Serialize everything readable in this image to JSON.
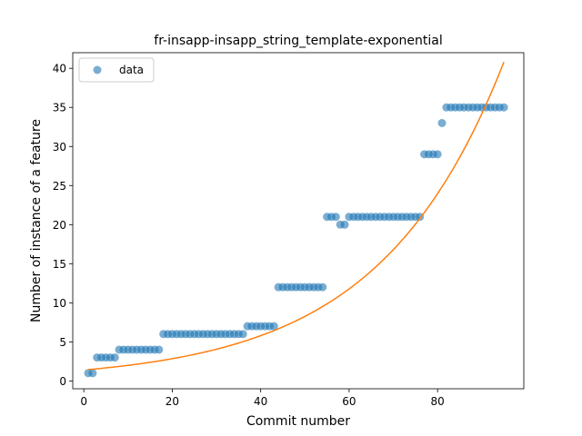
{
  "chart_data": {
    "type": "scatter",
    "title": "fr-insapp-insapp_string_template-exponential",
    "xlabel": "Commit number",
    "ylabel": "Number of instance of a feature",
    "xlim": [
      -2.5,
      99.5
    ],
    "ylim": [
      -1,
      42
    ],
    "x_ticks": [
      0,
      20,
      40,
      60,
      80
    ],
    "y_ticks": [
      0,
      5,
      10,
      15,
      20,
      25,
      30,
      35,
      40
    ],
    "grid": false,
    "legend_position": "upper-left",
    "colors": {
      "data": "#1f77b4",
      "fit": "#ff7f0e"
    },
    "series": [
      {
        "name": "data",
        "kind": "scatter",
        "x": [
          1,
          2,
          3,
          4,
          5,
          6,
          7,
          8,
          9,
          10,
          11,
          12,
          13,
          14,
          15,
          16,
          17,
          18,
          19,
          20,
          21,
          22,
          23,
          24,
          25,
          26,
          27,
          28,
          29,
          30,
          31,
          32,
          33,
          34,
          35,
          36,
          37,
          38,
          39,
          40,
          41,
          42,
          43,
          44,
          45,
          46,
          47,
          48,
          49,
          50,
          51,
          52,
          53,
          54,
          55,
          56,
          57,
          58,
          59,
          60,
          61,
          62,
          63,
          64,
          65,
          66,
          67,
          68,
          69,
          70,
          71,
          72,
          73,
          74,
          75,
          76,
          77,
          78,
          79,
          80,
          81,
          82,
          83,
          84,
          85,
          86,
          87,
          88,
          89,
          90,
          91,
          92,
          93,
          94,
          95
        ],
        "y": [
          1,
          1,
          3,
          3,
          3,
          3,
          3,
          4,
          4,
          4,
          4,
          4,
          4,
          4,
          4,
          4,
          4,
          6,
          6,
          6,
          6,
          6,
          6,
          6,
          6,
          6,
          6,
          6,
          6,
          6,
          6,
          6,
          6,
          6,
          6,
          6,
          7,
          7,
          7,
          7,
          7,
          7,
          7,
          12,
          12,
          12,
          12,
          12,
          12,
          12,
          12,
          12,
          12,
          12,
          21,
          21,
          21,
          20,
          20,
          21,
          21,
          21,
          21,
          21,
          21,
          21,
          21,
          21,
          21,
          21,
          21,
          21,
          21,
          21,
          21,
          21,
          29,
          29,
          29,
          29,
          33,
          35,
          35,
          35,
          35,
          35,
          35,
          35,
          35,
          35,
          35,
          35,
          35,
          35,
          35
        ]
      },
      {
        "name": "",
        "kind": "line",
        "model": "exponential",
        "x_range": [
          1,
          95
        ],
        "a": 1.4,
        "b": 0.0355
      }
    ]
  }
}
